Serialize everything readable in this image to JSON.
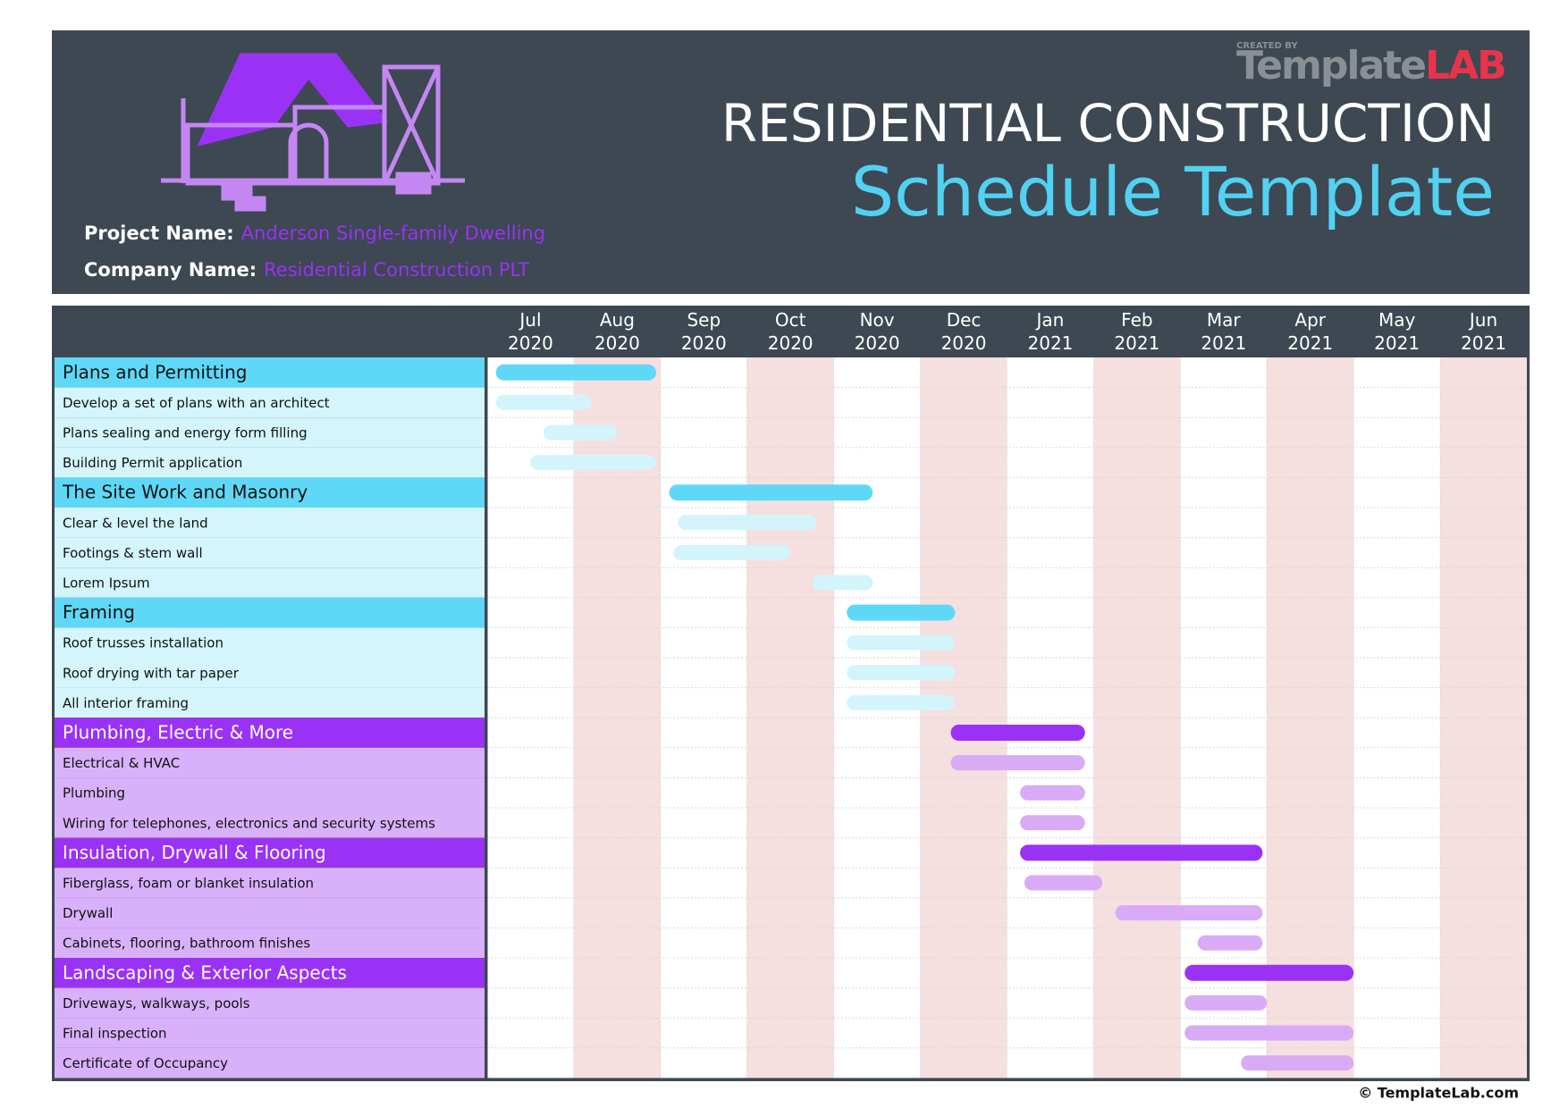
{
  "header": {
    "created_by": "CREATED BY",
    "logo_main": "Template",
    "logo_accent": "LAB",
    "title": "RESIDENTIAL CONSTRUCTION",
    "subtitle": "Schedule Template",
    "project_label": "Project Name:",
    "project_name": "Anderson Single-family Dwelling",
    "company_label": "Company Name:",
    "company_name": "Residential Construction PLT"
  },
  "footer": "© TemplateLab.com",
  "chart_data": {
    "type": "gantt",
    "xlim": [
      0,
      12
    ],
    "xticks": [
      {
        "value": 0,
        "label": "Jul 2020"
      },
      {
        "value": 1,
        "label": "Aug 2020"
      },
      {
        "value": 2,
        "label": "Sep 2020"
      },
      {
        "value": 3,
        "label": "Oct 2020"
      },
      {
        "value": 4,
        "label": "Nov 2020"
      },
      {
        "value": 5,
        "label": "Dec 2020"
      },
      {
        "value": 6,
        "label": "Jan 2021"
      },
      {
        "value": 7,
        "label": "Feb 2021"
      },
      {
        "value": 8,
        "label": "Mar 2021"
      },
      {
        "value": 9,
        "label": "Apr 2021"
      },
      {
        "value": 10,
        "label": "May 2021"
      },
      {
        "value": 11,
        "label": "Jun 2021"
      }
    ],
    "grid": true,
    "groups": [
      {
        "name": "Plans and Permitting",
        "color": "#5fd8f7",
        "task_color": "#d3f4fb",
        "label_bg": "#d4f5fc",
        "start": 0.1,
        "end": 1.95,
        "tasks": [
          {
            "name": "Develop a set of plans with an architect",
            "start": 0.1,
            "end": 1.2
          },
          {
            "name": "Plans sealing and energy form filling",
            "start": 0.65,
            "end": 1.5
          },
          {
            "name": "Building Permit application",
            "start": 0.5,
            "end": 1.95
          }
        ]
      },
      {
        "name": "The Site Work and Masonry",
        "color": "#5fd8f7",
        "task_color": "#d3f4fb",
        "label_bg": "#d4f5fc",
        "start": 2.1,
        "end": 4.45,
        "tasks": [
          {
            "name": "Clear & level the land",
            "start": 2.2,
            "end": 3.8
          },
          {
            "name": "Footings & stem wall",
            "start": 2.15,
            "end": 3.5
          },
          {
            "name": "Lorem Ipsum",
            "start": 3.75,
            "end": 4.45
          }
        ]
      },
      {
        "name": "Framing",
        "color": "#5fd8f7",
        "task_color": "#d3f4fb",
        "label_bg": "#d4f5fc",
        "start": 4.15,
        "end": 5.4,
        "tasks": [
          {
            "name": "Roof trusses installation",
            "start": 4.15,
            "end": 5.4
          },
          {
            "name": "Roof drying with tar paper",
            "start": 4.15,
            "end": 5.4
          },
          {
            "name": "All interior framing",
            "start": 4.15,
            "end": 5.4
          }
        ]
      },
      {
        "name": "Plumbing, Electric & More",
        "color": "#9a32f5",
        "task_color": "#d9aaf6",
        "label_bg": "#d9b1fa",
        "start": 5.35,
        "end": 6.9,
        "tasks": [
          {
            "name": "Electrical & HVAC",
            "start": 5.35,
            "end": 6.9
          },
          {
            "name": "Plumbing",
            "start": 6.15,
            "end": 6.9
          },
          {
            "name": "Wiring for telephones, electronics and security systems",
            "start": 6.15,
            "end": 6.9
          }
        ]
      },
      {
        "name": "Insulation, Drywall & Flooring",
        "color": "#9a32f5",
        "task_color": "#d9aaf6",
        "label_bg": "#d9b1fa",
        "start": 6.15,
        "end": 8.95,
        "tasks": [
          {
            "name": "Fiberglass, foam or blanket insulation",
            "start": 6.2,
            "end": 7.1
          },
          {
            "name": "Drywall",
            "start": 7.25,
            "end": 8.95
          },
          {
            "name": "Cabinets, flooring, bathroom finishes",
            "start": 8.2,
            "end": 8.95
          }
        ]
      },
      {
        "name": "Landscaping & Exterior Aspects",
        "color": "#9a32f5",
        "task_color": "#d9aaf6",
        "label_bg": "#d9b1fa",
        "start": 8.05,
        "end": 10,
        "tasks": [
          {
            "name": "Driveways, walkways, pools",
            "start": 8.05,
            "end": 9
          },
          {
            "name": "Final inspection",
            "start": 8.05,
            "end": 10
          },
          {
            "name": "Certificate of Occupancy",
            "start": 8.7,
            "end": 10
          }
        ]
      }
    ]
  }
}
